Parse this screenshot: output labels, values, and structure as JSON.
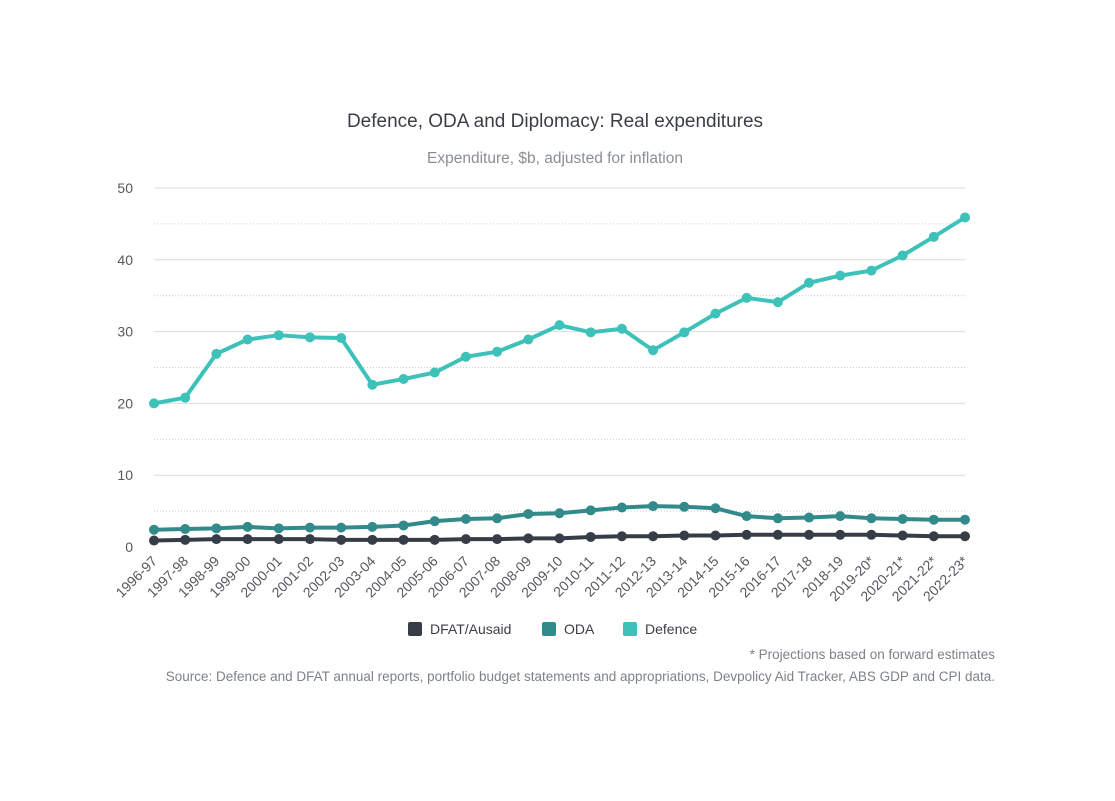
{
  "chart_data": {
    "type": "line",
    "title": "Defence, ODA and Diplomacy: Real expenditures",
    "subtitle": "Expenditure, $b, adjusted for inflation",
    "xlabel": "",
    "ylabel": "",
    "ylim": [
      0,
      50
    ],
    "yticks": [
      "0",
      "10",
      "20",
      "30",
      "40",
      "50"
    ],
    "grid": "horizontal",
    "legend_position": "bottom",
    "categories": [
      "1996-97",
      "1997-98",
      "1998-99",
      "1999-00",
      "2000-01",
      "2001-02",
      "2002-03",
      "2003-04",
      "2004-05",
      "2005-06",
      "2006-07",
      "2007-08",
      "2008-09",
      "2009-10",
      "2010-11",
      "2011-12",
      "2012-13",
      "2013-14",
      "2014-15",
      "2015-16",
      "2016-17",
      "2017-18",
      "2018-19",
      "2019-20*",
      "2020-21*",
      "2021-22*",
      "2022-23*"
    ],
    "series": [
      {
        "name": "DFAT/Ausaid",
        "color": "#363d47",
        "values": [
          0.9,
          1.0,
          1.1,
          1.1,
          1.1,
          1.1,
          1.0,
          1.0,
          1.0,
          1.0,
          1.1,
          1.1,
          1.2,
          1.2,
          1.4,
          1.5,
          1.5,
          1.6,
          1.6,
          1.7,
          1.7,
          1.7,
          1.7,
          1.7,
          1.6,
          1.5,
          1.5
        ]
      },
      {
        "name": "ODA",
        "color": "#338a8a",
        "values": [
          2.4,
          2.5,
          2.6,
          2.8,
          2.6,
          2.7,
          2.7,
          2.8,
          3.0,
          3.6,
          3.9,
          4.0,
          4.6,
          4.7,
          5.1,
          5.5,
          5.7,
          5.6,
          5.4,
          4.3,
          4.0,
          4.1,
          4.3,
          4.0,
          3.9,
          3.8,
          3.8
        ]
      },
      {
        "name": "Defence",
        "color": "#3dc1b9",
        "values": [
          20.0,
          20.8,
          26.9,
          28.9,
          29.5,
          29.2,
          29.1,
          22.6,
          23.4,
          24.3,
          26.5,
          27.2,
          28.9,
          30.9,
          29.9,
          30.4,
          27.4,
          29.9,
          32.5,
          34.7,
          34.1,
          36.8,
          37.8,
          38.5,
          40.6,
          43.2,
          45.9
        ]
      }
    ],
    "notes": {
      "footnote": "* Projections based on forward estimates",
      "source": "Source: Defence and DFAT annual reports, portfolio budget statements and appropriations, Devpolicy Aid Tracker, ABS GDP and CPI data."
    }
  }
}
